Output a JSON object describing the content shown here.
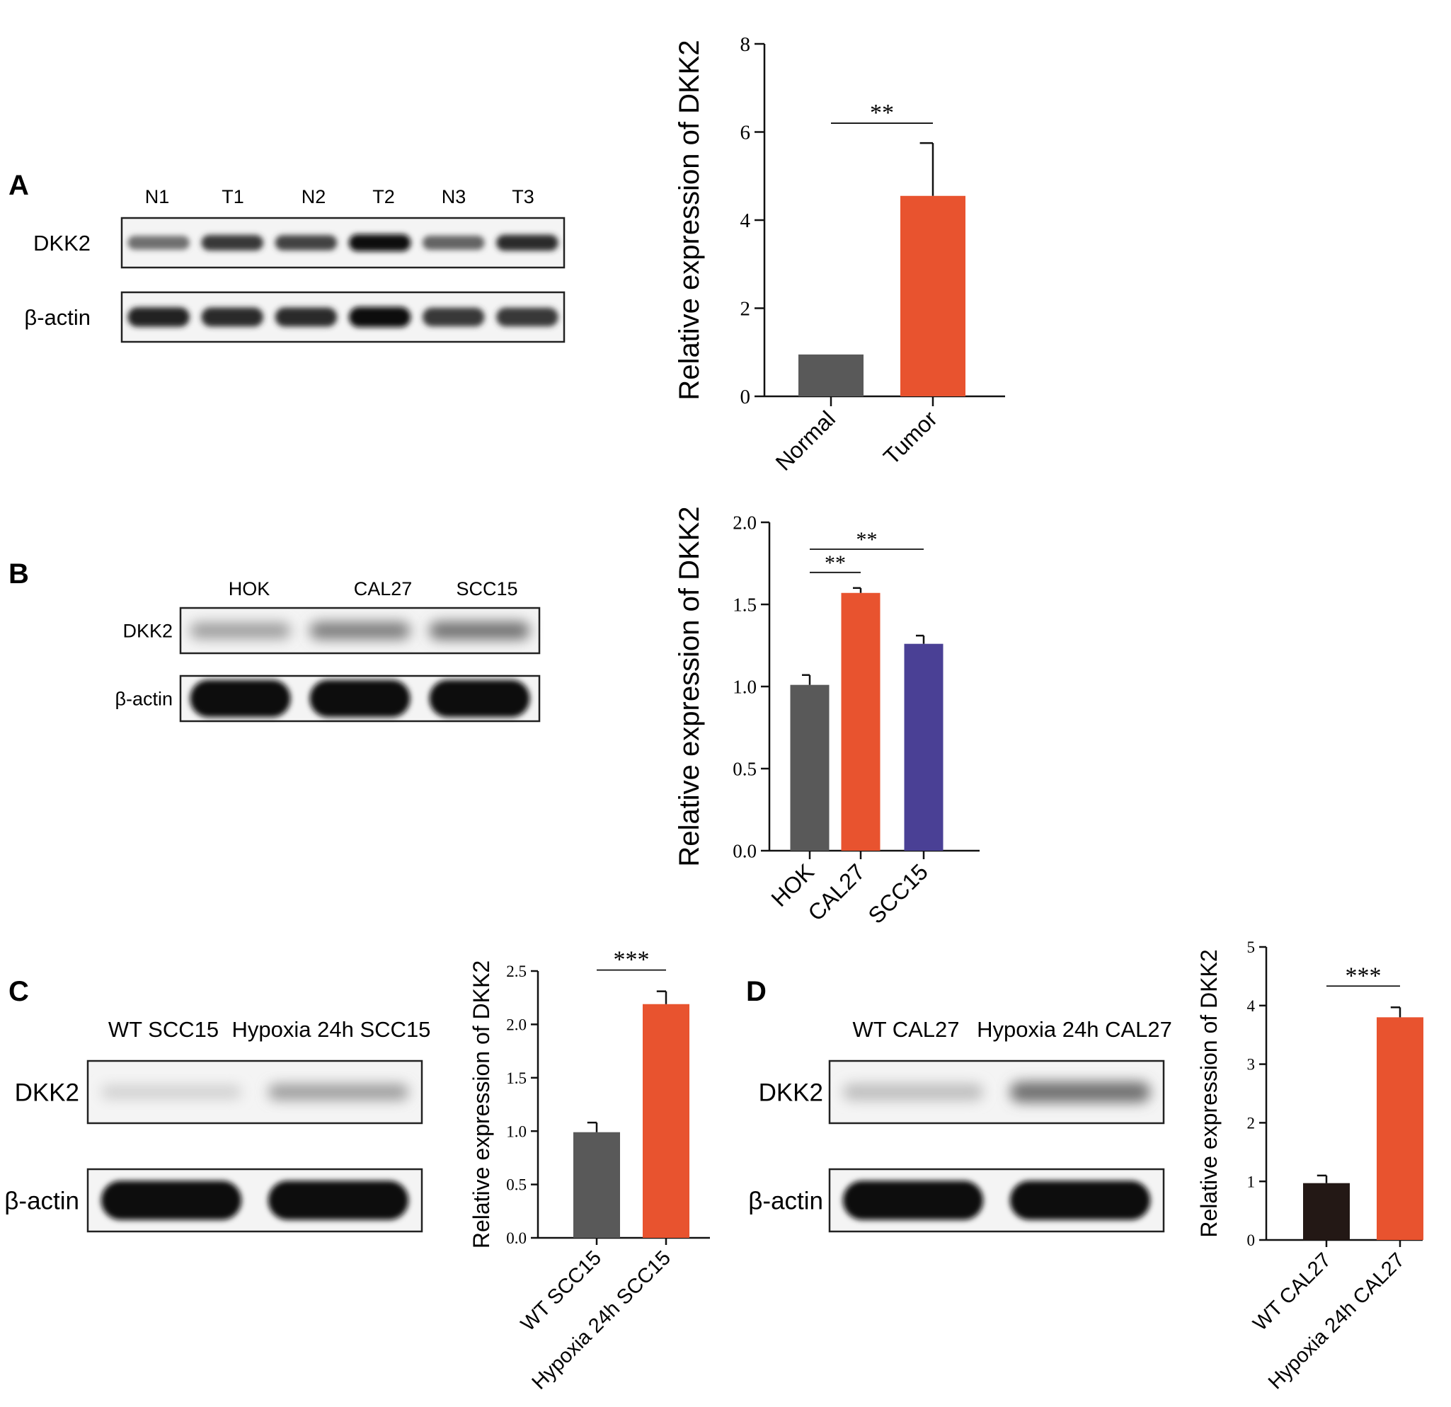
{
  "figure": {
    "panels": [
      {
        "letter": "A",
        "blot": {
          "lanes": [
            "N1",
            "T1",
            "N2",
            "T2",
            "N3",
            "T3"
          ],
          "rows": [
            {
              "label": "DKK2",
              "intensity": [
                0.55,
                0.8,
                0.75,
                1.0,
                0.6,
                0.85
              ]
            },
            {
              "label": "β-actin",
              "intensity": [
                0.9,
                0.85,
                0.85,
                1.0,
                0.8,
                0.8
              ]
            }
          ]
        }
      },
      {
        "letter": "B",
        "blot": {
          "lanes": [
            "HOK",
            "CAL27",
            "SCC15"
          ],
          "rows": [
            {
              "label": "DKK2",
              "intensity": [
                0.35,
                0.5,
                0.55
              ]
            },
            {
              "label": "β-actin",
              "intensity": [
                1.0,
                1.0,
                1.0
              ]
            }
          ]
        }
      },
      {
        "letter": "C",
        "blot": {
          "lanes": [
            "WT SCC15",
            "Hypoxia 24h SCC15"
          ],
          "rows": [
            {
              "label": "DKK2",
              "intensity": [
                0.12,
                0.35
              ]
            },
            {
              "label": "β-actin",
              "intensity": [
                1.0,
                1.0
              ]
            }
          ]
        }
      },
      {
        "letter": "D",
        "blot": {
          "lanes": [
            "WT CAL27",
            "Hypoxia 24h CAL27"
          ],
          "rows": [
            {
              "label": "DKK2",
              "intensity": [
                0.2,
                0.55
              ]
            },
            {
              "label": "β-actin",
              "intensity": [
                1.0,
                1.0
              ]
            }
          ]
        }
      }
    ]
  },
  "chart_data": [
    {
      "type": "bar",
      "panel": "A",
      "ylabel": "Relative expression of DKK2",
      "categories": [
        "Normal",
        "Tumor"
      ],
      "values": [
        0.95,
        4.55
      ],
      "errors": [
        0,
        1.2
      ],
      "colors": [
        "#595959",
        "#e8532f"
      ],
      "ylim": [
        0,
        8
      ],
      "yticks": [
        "0",
        "2",
        "4",
        "6",
        "8"
      ],
      "significance": [
        {
          "from": 0,
          "to": 1,
          "label": "**"
        }
      ]
    },
    {
      "type": "bar",
      "panel": "B",
      "ylabel": "Relative expression of DKK2",
      "categories": [
        "HOK",
        "CAL27",
        "SCC15"
      ],
      "values": [
        1.01,
        1.57,
        1.26
      ],
      "errors": [
        0.06,
        0.03,
        0.05
      ],
      "colors": [
        "#595959",
        "#e8532f",
        "#4a4095"
      ],
      "ylim": [
        0,
        2.0
      ],
      "yticks": [
        "0.0",
        "0.5",
        "1.0",
        "1.5",
        "2.0"
      ],
      "significance": [
        {
          "from": 0,
          "to": 1,
          "label": "**"
        },
        {
          "from": 0,
          "to": 2,
          "label": "**"
        }
      ]
    },
    {
      "type": "bar",
      "panel": "C",
      "ylabel": "Relative expression of DKK2",
      "categories": [
        "WT SCC15",
        "Hypoxia 24h SCC15"
      ],
      "values": [
        0.99,
        2.19
      ],
      "errors": [
        0.09,
        0.12
      ],
      "colors": [
        "#595959",
        "#e8532f"
      ],
      "ylim": [
        0,
        2.5
      ],
      "yticks": [
        "0.0",
        "0.5",
        "1.0",
        "1.5",
        "2.0",
        "2.5"
      ],
      "significance": [
        {
          "from": 0,
          "to": 1,
          "label": "***"
        }
      ]
    },
    {
      "type": "bar",
      "panel": "D",
      "ylabel": "Relative expression of DKK2",
      "categories": [
        "WT CAL27",
        "Hypoxia 24h CAL27"
      ],
      "values": [
        0.97,
        3.8
      ],
      "errors": [
        0.13,
        0.17
      ],
      "colors": [
        "#231815",
        "#e8532f"
      ],
      "ylim": [
        0,
        5
      ],
      "yticks": [
        "0",
        "1",
        "2",
        "3",
        "4",
        "5"
      ],
      "significance": [
        {
          "from": 0,
          "to": 1,
          "label": "***"
        }
      ]
    }
  ]
}
